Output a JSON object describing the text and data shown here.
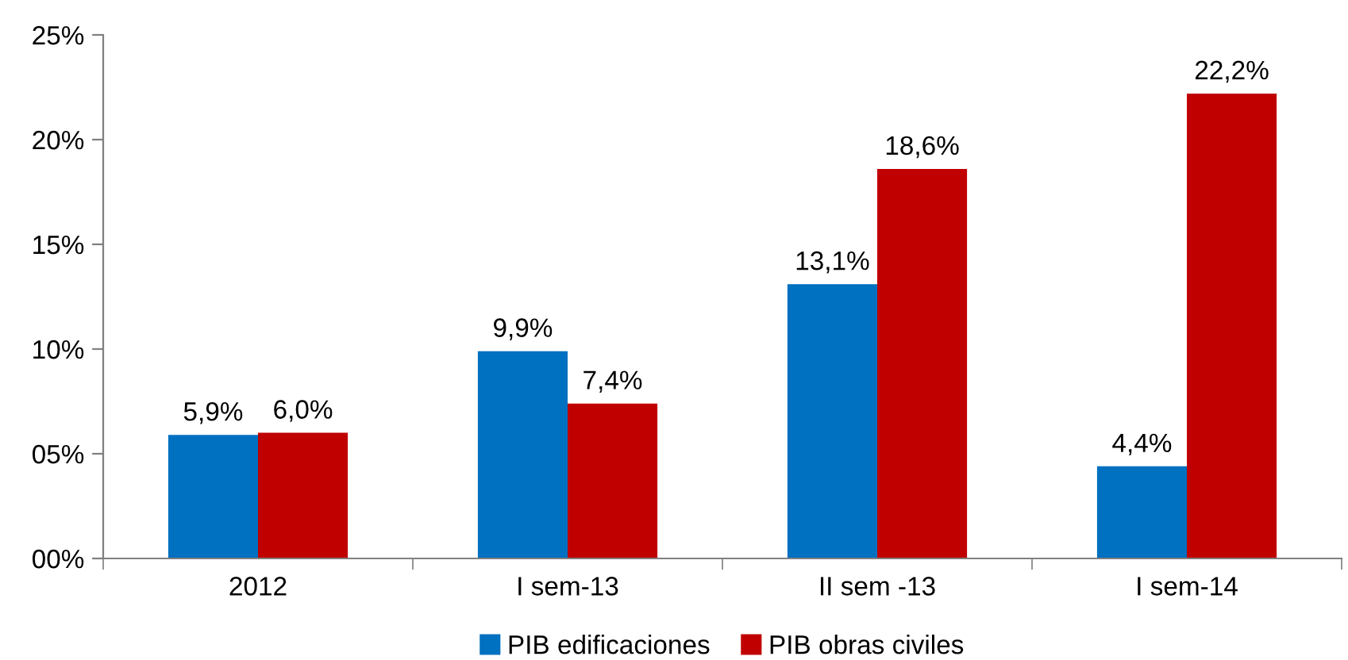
{
  "chart_data": {
    "type": "bar",
    "categories": [
      "2012",
      "I sem-13",
      "II sem -13",
      "I sem-14"
    ],
    "series": [
      {
        "name": "PIB edificaciones",
        "color": "#0070c0",
        "values": [
          5.9,
          9.9,
          13.1,
          4.4
        ],
        "value_labels": [
          "5,9%",
          "9,9%",
          "13,1%",
          "4,4%"
        ]
      },
      {
        "name": "PIB obras civiles",
        "color": "#c00000",
        "values": [
          6.0,
          7.4,
          18.6,
          22.2
        ],
        "value_labels": [
          "6,0%",
          "7,4%",
          "18,6%",
          "22,2%"
        ]
      }
    ],
    "ylim": [
      0,
      25
    ],
    "yticks": [
      {
        "value": 0,
        "label": "00%"
      },
      {
        "value": 5,
        "label": "05%"
      },
      {
        "value": 10,
        "label": "10%"
      },
      {
        "value": 15,
        "label": "15%"
      },
      {
        "value": 20,
        "label": "20%"
      },
      {
        "value": 25,
        "label": "25%"
      }
    ],
    "grid": false,
    "legend": "bottom"
  }
}
